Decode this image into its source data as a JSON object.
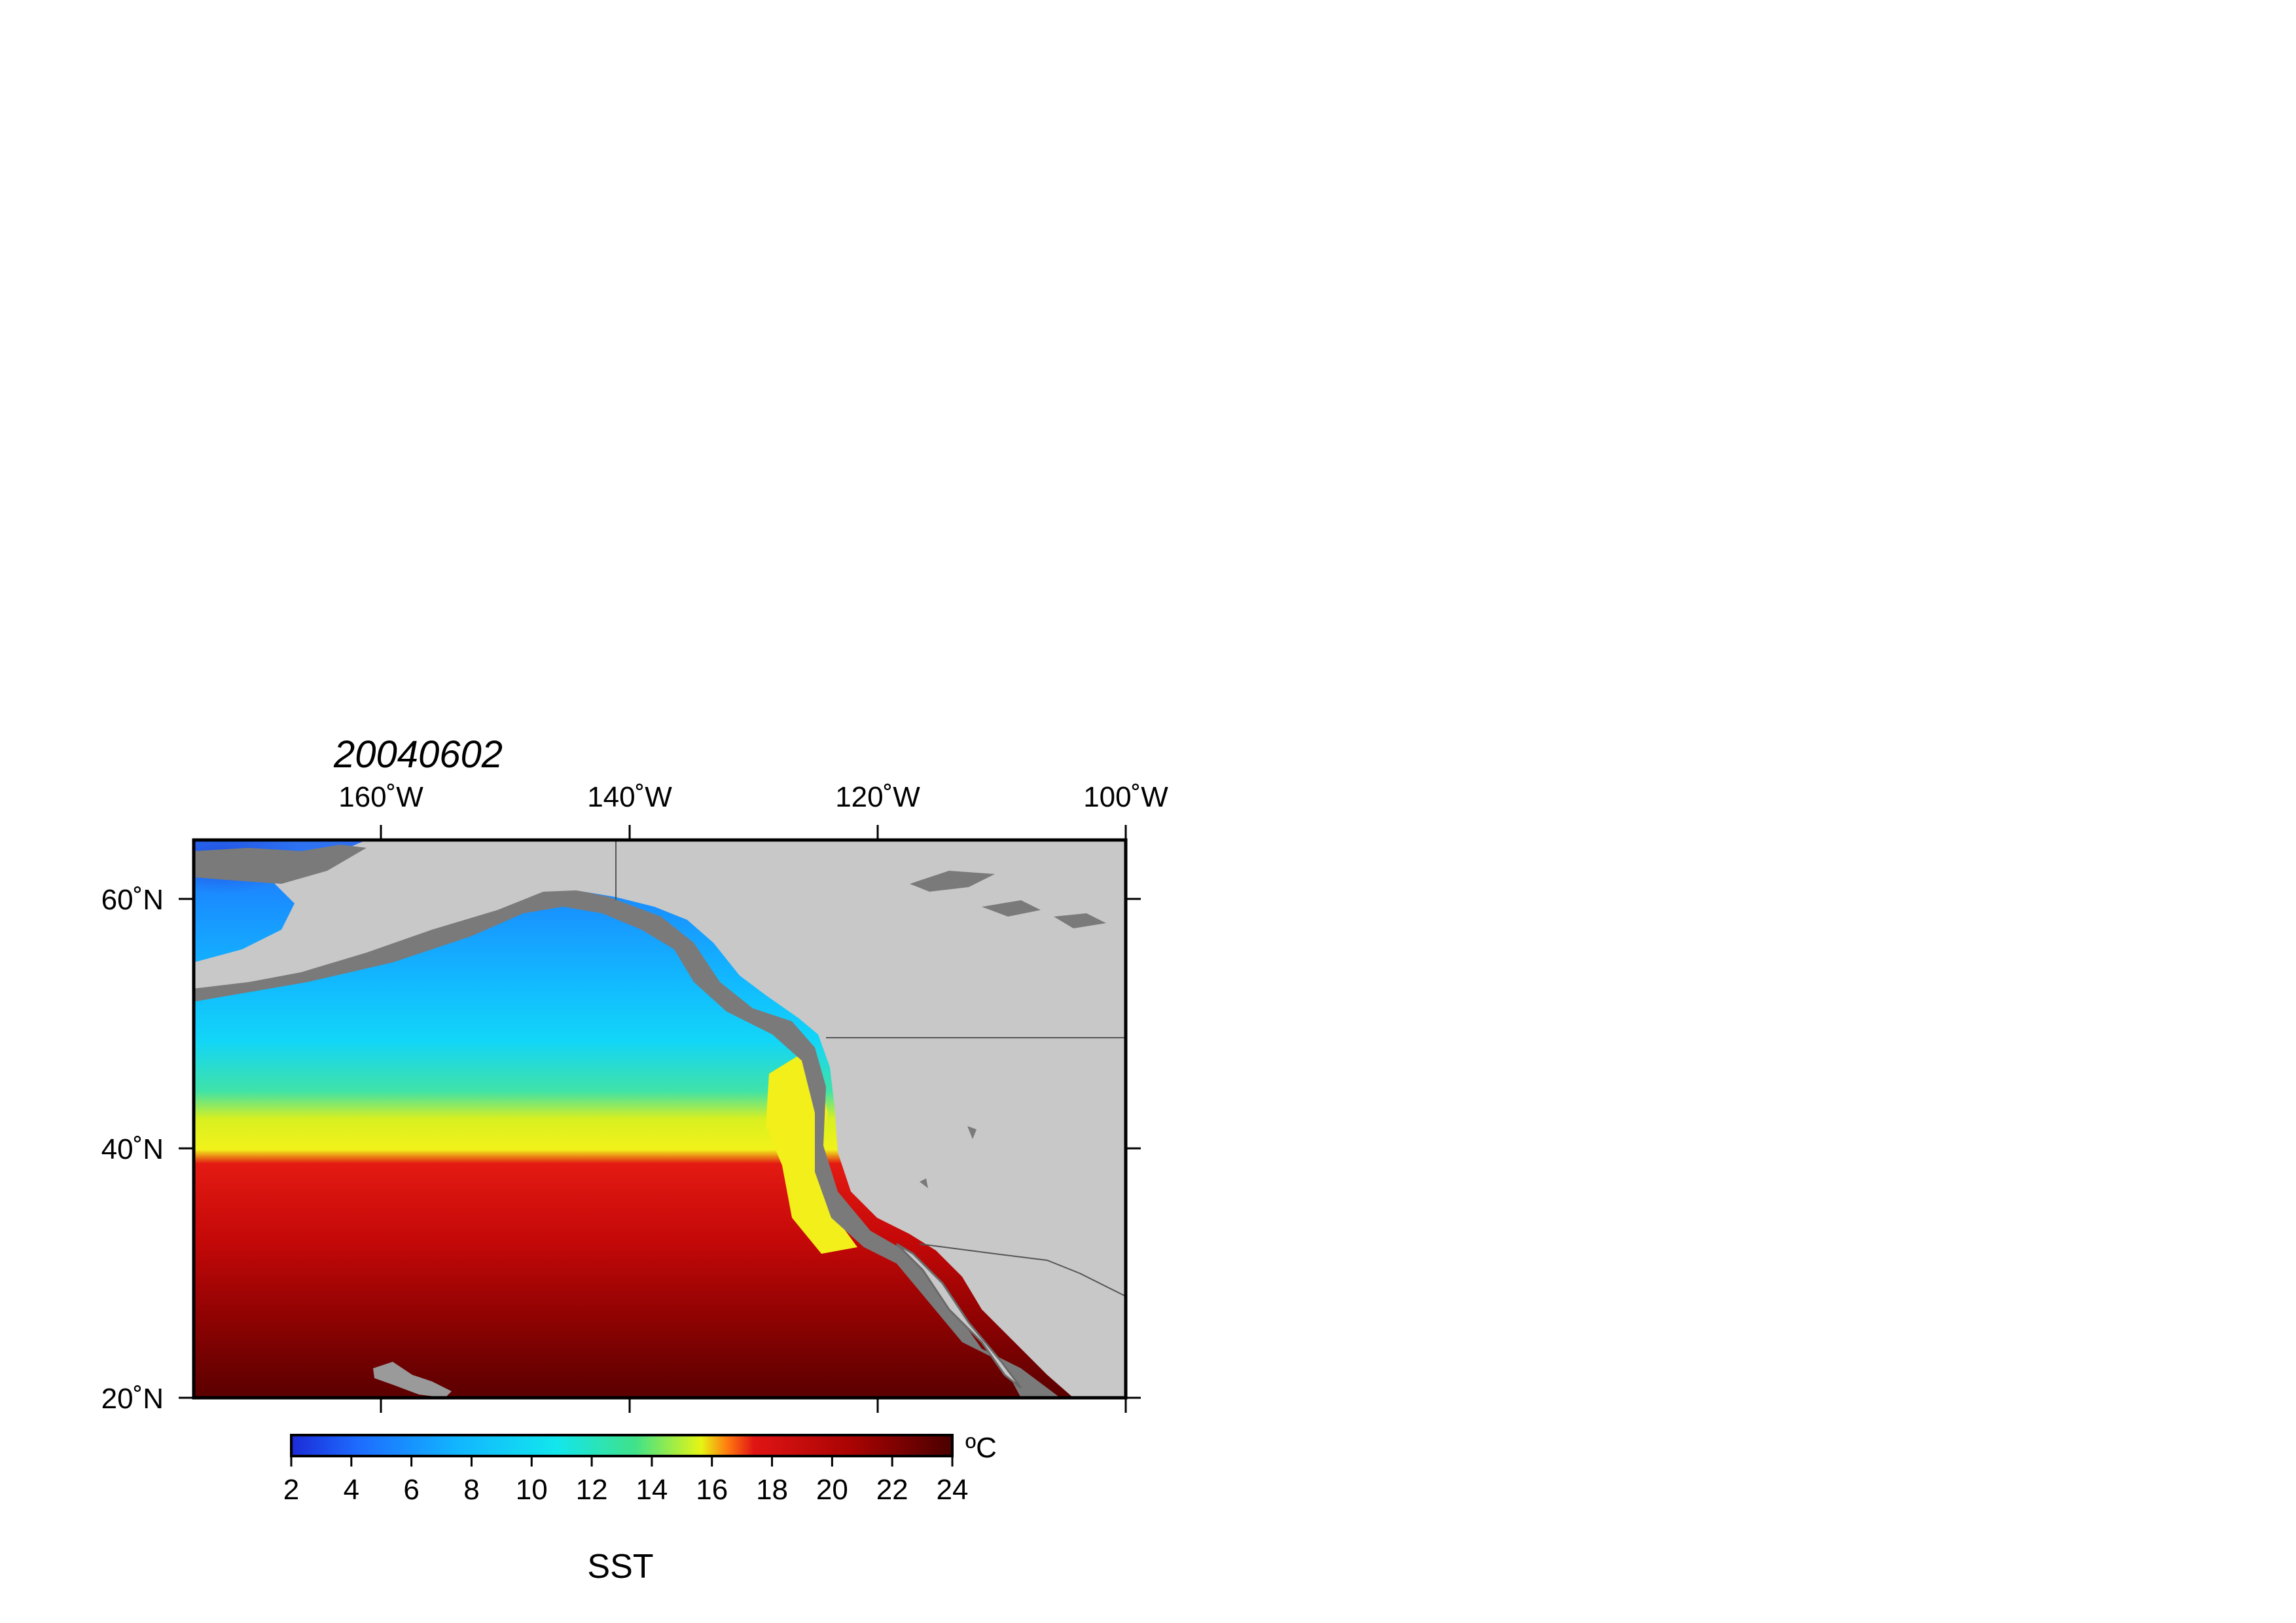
{
  "map": {
    "title": "20040602",
    "title_color": "#0d1266",
    "lon_ticks": [
      "160˚W",
      "140˚W",
      "120˚W",
      "100˚W"
    ],
    "lat_ticks": [
      "60˚N",
      "40˚N",
      "20˚N"
    ],
    "lon_range": [
      -175,
      -100
    ],
    "lat_range": [
      20,
      65
    ],
    "land_color": "#c8c8c8",
    "nodata_color": "#7a7a7a",
    "sst_field": {
      "description_bands": [
        {
          "lat_from": 57,
          "lat_to": 65,
          "range_C": [
            3,
            6
          ]
        },
        {
          "lat_from": 45,
          "lat_to": 57,
          "range_C": [
            6,
            10
          ]
        },
        {
          "lat_from": 38,
          "lat_to": 45,
          "range_C": [
            10,
            15
          ]
        },
        {
          "lat_from": 28,
          "lat_to": 38,
          "range_C": [
            16,
            20
          ]
        },
        {
          "lat_from": 20,
          "lat_to": 28,
          "range_C": [
            20,
            24
          ]
        }
      ]
    }
  },
  "colorbar": {
    "ticks": [
      "2",
      "4",
      "6",
      "8",
      "10",
      "12",
      "14",
      "16",
      "18",
      "20",
      "22",
      "24"
    ],
    "min": 2,
    "max": 24,
    "unit": "ºC",
    "label": "SST",
    "stops": [
      "#1c2bd6",
      "#1d6bff",
      "#12b5ff",
      "#12e6ee",
      "#3fe28a",
      "#e6f514",
      "#ff7a10",
      "#d81414",
      "#9e0202",
      "#4a0000"
    ]
  }
}
